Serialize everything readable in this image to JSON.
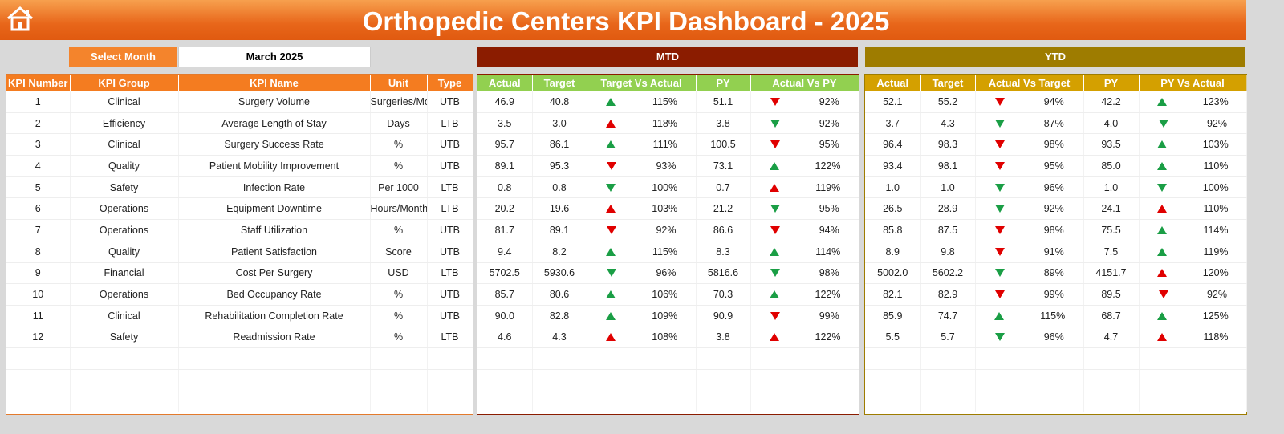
{
  "header": {
    "title": "Orthopedic Centers KPI Dashboard - 2025"
  },
  "month_selector": {
    "label": "Select Month",
    "value": "March 2025"
  },
  "sections": {
    "mtd": "MTD",
    "ytd": "YTD"
  },
  "columns": {
    "info": [
      "KPI Number",
      "KPI Group",
      "KPI Name",
      "Unit",
      "Type"
    ],
    "mtd": [
      "Actual",
      "Target",
      "Target Vs Actual",
      "PY",
      "Actual Vs PY"
    ],
    "ytd": [
      "Actual",
      "Target",
      "Actual Vs Target",
      "PY",
      "PY Vs Actual"
    ]
  },
  "rows": [
    {
      "info": [
        "1",
        "Clinical",
        "Surgery Volume",
        "Surgeries/Month",
        "UTB"
      ],
      "mtd": [
        "46.9",
        "40.8",
        {
          "text": "115%",
          "arrow": "up",
          "color": "#1a9e45"
        },
        "51.1",
        {
          "text": "92%",
          "arrow": "down",
          "color": "#e00000"
        }
      ],
      "ytd": [
        "52.1",
        "55.2",
        {
          "text": "94%",
          "arrow": "down",
          "color": "#e00000"
        },
        "42.2",
        {
          "text": "123%",
          "arrow": "up",
          "color": "#1a9e45"
        }
      ]
    },
    {
      "info": [
        "2",
        "Efficiency",
        "Average Length of Stay",
        "Days",
        "LTB"
      ],
      "mtd": [
        "3.5",
        "3.0",
        {
          "text": "118%",
          "arrow": "up",
          "color": "#e00000"
        },
        "3.8",
        {
          "text": "92%",
          "arrow": "down",
          "color": "#1a9e45"
        }
      ],
      "ytd": [
        "3.7",
        "4.3",
        {
          "text": "87%",
          "arrow": "down",
          "color": "#1a9e45"
        },
        "4.0",
        {
          "text": "92%",
          "arrow": "down",
          "color": "#1a9e45"
        }
      ]
    },
    {
      "info": [
        "3",
        "Clinical",
        "Surgery Success Rate",
        "%",
        "UTB"
      ],
      "mtd": [
        "95.7",
        "86.1",
        {
          "text": "111%",
          "arrow": "up",
          "color": "#1a9e45"
        },
        "100.5",
        {
          "text": "95%",
          "arrow": "down",
          "color": "#e00000"
        }
      ],
      "ytd": [
        "96.4",
        "98.3",
        {
          "text": "98%",
          "arrow": "down",
          "color": "#e00000"
        },
        "93.5",
        {
          "text": "103%",
          "arrow": "up",
          "color": "#1a9e45"
        }
      ]
    },
    {
      "info": [
        "4",
        "Quality",
        "Patient Mobility Improvement",
        "%",
        "UTB"
      ],
      "mtd": [
        "89.1",
        "95.3",
        {
          "text": "93%",
          "arrow": "down",
          "color": "#e00000"
        },
        "73.1",
        {
          "text": "122%",
          "arrow": "up",
          "color": "#1a9e45"
        }
      ],
      "ytd": [
        "93.4",
        "98.1",
        {
          "text": "95%",
          "arrow": "down",
          "color": "#e00000"
        },
        "85.0",
        {
          "text": "110%",
          "arrow": "up",
          "color": "#1a9e45"
        }
      ]
    },
    {
      "info": [
        "5",
        "Safety",
        "Infection Rate",
        "Per 1000",
        "LTB"
      ],
      "mtd": [
        "0.8",
        "0.8",
        {
          "text": "100%",
          "arrow": "down",
          "color": "#1a9e45"
        },
        "0.7",
        {
          "text": "119%",
          "arrow": "up",
          "color": "#e00000"
        }
      ],
      "ytd": [
        "1.0",
        "1.0",
        {
          "text": "96%",
          "arrow": "down",
          "color": "#1a9e45"
        },
        "1.0",
        {
          "text": "100%",
          "arrow": "down",
          "color": "#1a9e45"
        }
      ]
    },
    {
      "info": [
        "6",
        "Operations",
        "Equipment Downtime",
        "Hours/Month",
        "LTB"
      ],
      "mtd": [
        "20.2",
        "19.6",
        {
          "text": "103%",
          "arrow": "up",
          "color": "#e00000"
        },
        "21.2",
        {
          "text": "95%",
          "arrow": "down",
          "color": "#1a9e45"
        }
      ],
      "ytd": [
        "26.5",
        "28.9",
        {
          "text": "92%",
          "arrow": "down",
          "color": "#1a9e45"
        },
        "24.1",
        {
          "text": "110%",
          "arrow": "up",
          "color": "#e00000"
        }
      ]
    },
    {
      "info": [
        "7",
        "Operations",
        "Staff Utilization",
        "%",
        "UTB"
      ],
      "mtd": [
        "81.7",
        "89.1",
        {
          "text": "92%",
          "arrow": "down",
          "color": "#e00000"
        },
        "86.6",
        {
          "text": "94%",
          "arrow": "down",
          "color": "#e00000"
        }
      ],
      "ytd": [
        "85.8",
        "87.5",
        {
          "text": "98%",
          "arrow": "down",
          "color": "#e00000"
        },
        "75.5",
        {
          "text": "114%",
          "arrow": "up",
          "color": "#1a9e45"
        }
      ]
    },
    {
      "info": [
        "8",
        "Quality",
        "Patient Satisfaction",
        "Score",
        "UTB"
      ],
      "mtd": [
        "9.4",
        "8.2",
        {
          "text": "115%",
          "arrow": "up",
          "color": "#1a9e45"
        },
        "8.3",
        {
          "text": "114%",
          "arrow": "up",
          "color": "#1a9e45"
        }
      ],
      "ytd": [
        "8.9",
        "9.8",
        {
          "text": "91%",
          "arrow": "down",
          "color": "#e00000"
        },
        "7.5",
        {
          "text": "119%",
          "arrow": "up",
          "color": "#1a9e45"
        }
      ]
    },
    {
      "info": [
        "9",
        "Financial",
        "Cost Per Surgery",
        "USD",
        "LTB"
      ],
      "mtd": [
        "5702.5",
        "5930.6",
        {
          "text": "96%",
          "arrow": "down",
          "color": "#1a9e45"
        },
        "5816.6",
        {
          "text": "98%",
          "arrow": "down",
          "color": "#1a9e45"
        }
      ],
      "ytd": [
        "5002.0",
        "5602.2",
        {
          "text": "89%",
          "arrow": "down",
          "color": "#1a9e45"
        },
        "4151.7",
        {
          "text": "120%",
          "arrow": "up",
          "color": "#e00000"
        }
      ]
    },
    {
      "info": [
        "10",
        "Operations",
        "Bed Occupancy Rate",
        "%",
        "UTB"
      ],
      "mtd": [
        "85.7",
        "80.6",
        {
          "text": "106%",
          "arrow": "up",
          "color": "#1a9e45"
        },
        "70.3",
        {
          "text": "122%",
          "arrow": "up",
          "color": "#1a9e45"
        }
      ],
      "ytd": [
        "82.1",
        "82.9",
        {
          "text": "99%",
          "arrow": "down",
          "color": "#e00000"
        },
        "89.5",
        {
          "text": "92%",
          "arrow": "down",
          "color": "#e00000"
        }
      ]
    },
    {
      "info": [
        "11",
        "Clinical",
        "Rehabilitation Completion Rate",
        "%",
        "UTB"
      ],
      "mtd": [
        "90.0",
        "82.8",
        {
          "text": "109%",
          "arrow": "up",
          "color": "#1a9e45"
        },
        "90.9",
        {
          "text": "99%",
          "arrow": "down",
          "color": "#e00000"
        }
      ],
      "ytd": [
        "85.9",
        "74.7",
        {
          "text": "115%",
          "arrow": "up",
          "color": "#1a9e45"
        },
        "68.7",
        {
          "text": "125%",
          "arrow": "up",
          "color": "#1a9e45"
        }
      ]
    },
    {
      "info": [
        "12",
        "Safety",
        "Readmission Rate",
        "%",
        "LTB"
      ],
      "mtd": [
        "4.6",
        "4.3",
        {
          "text": "108%",
          "arrow": "up",
          "color": "#e00000"
        },
        "3.8",
        {
          "text": "122%",
          "arrow": "up",
          "color": "#e00000"
        }
      ],
      "ytd": [
        "5.5",
        "5.7",
        {
          "text": "96%",
          "arrow": "down",
          "color": "#1a9e45"
        },
        "4.7",
        {
          "text": "118%",
          "arrow": "up",
          "color": "#e00000"
        }
      ]
    }
  ]
}
